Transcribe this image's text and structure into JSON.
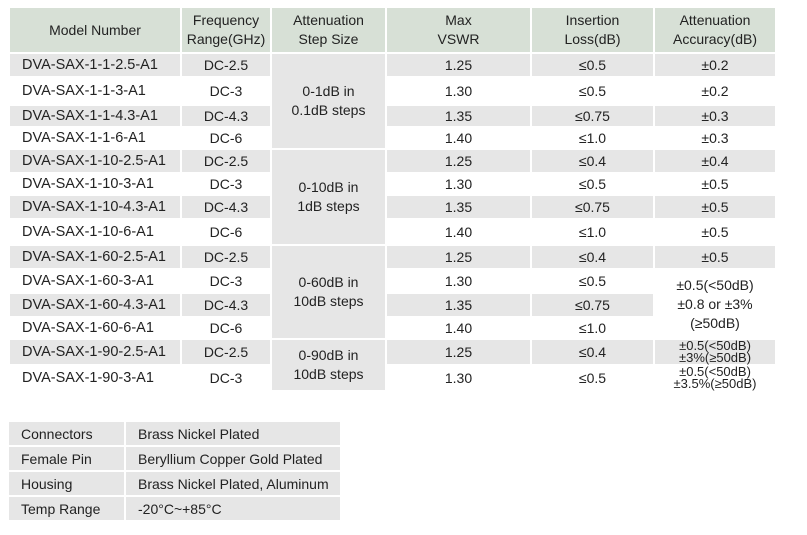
{
  "headers": {
    "model": "Model Number",
    "freq": [
      "Frequency",
      "Range(GHz)"
    ],
    "step": [
      "Attenuation",
      "Step Size"
    ],
    "vswr": [
      "Max",
      "VSWR"
    ],
    "loss": [
      "Insertion",
      "Loss(dB)"
    ],
    "acc": [
      "Attenuation",
      "Accuracy(dB)"
    ]
  },
  "rows": [
    {
      "model": "DVA-SAX-1-1-2.5-A1",
      "freq": "DC-2.5",
      "vswr": "1.25",
      "loss": "≤0.5",
      "acc": "±0.2"
    },
    {
      "model": "DVA-SAX-1-1-3-A1",
      "freq": "DC-3",
      "vswr": "1.30",
      "loss": "≤0.5",
      "acc": "±0.2"
    },
    {
      "model": "DVA-SAX-1-1-4.3-A1",
      "freq": "DC-4.3",
      "vswr": "1.35",
      "loss": "≤0.75",
      "acc": "±0.3"
    },
    {
      "model": "DVA-SAX-1-1-6-A1",
      "freq": "DC-6",
      "vswr": "1.40",
      "loss": "≤1.0",
      "acc": "±0.3"
    },
    {
      "model": "DVA-SAX-1-10-2.5-A1",
      "freq": "DC-2.5",
      "vswr": "1.25",
      "loss": "≤0.4",
      "acc": "±0.4"
    },
    {
      "model": "DVA-SAX-1-10-3-A1",
      "freq": "DC-3",
      "vswr": "1.30",
      "loss": "≤0.5",
      "acc": "±0.5"
    },
    {
      "model": "DVA-SAX-1-10-4.3-A1",
      "freq": "DC-4.3",
      "vswr": "1.35",
      "loss": "≤0.75",
      "acc": "±0.5"
    },
    {
      "model": "DVA-SAX-1-10-6-A1",
      "freq": "DC-6",
      "vswr": "1.40",
      "loss": "≤1.0",
      "acc": "±0.5"
    },
    {
      "model": "DVA-SAX-1-60-2.5-A1",
      "freq": "DC-2.5",
      "vswr": "1.25",
      "loss": "≤0.4",
      "acc": "±0.5"
    },
    {
      "model": "DVA-SAX-1-60-3-A1",
      "freq": "DC-3",
      "vswr": "1.30",
      "loss": "≤0.5"
    },
    {
      "model": "DVA-SAX-1-60-4.3-A1",
      "freq": "DC-4.3",
      "vswr": "1.35",
      "loss": "≤0.75"
    },
    {
      "model": "DVA-SAX-1-60-6-A1",
      "freq": "DC-6",
      "vswr": "1.40",
      "loss": "≤1.0"
    },
    {
      "model": "DVA-SAX-1-90-2.5-A1",
      "freq": "DC-2.5",
      "vswr": "1.25",
      "loss": "≤0.4",
      "acc": [
        "±0.5(<50dB)",
        "±3%(≥50dB)"
      ]
    },
    {
      "model": "DVA-SAX-1-90-3-A1",
      "freq": "DC-3",
      "vswr": "1.30",
      "loss": "≤0.5",
      "acc": [
        "±0.5(<50dB)",
        "±3.5%(≥50dB)"
      ]
    }
  ],
  "step_groups": [
    {
      "rows": 4,
      "text": [
        "0-1dB in",
        "0.1dB steps"
      ]
    },
    {
      "rows": 4,
      "text": [
        "0-10dB in",
        "1dB steps"
      ]
    },
    {
      "rows": 4,
      "text": [
        "0-60dB in",
        "10dB steps"
      ]
    },
    {
      "rows": 2,
      "text": [
        "0-90dB in",
        "10dB steps"
      ]
    }
  ],
  "acc_group_60": [
    "±0.5(<50dB)",
    "±0.8 or ±3%",
    "(≥50dB)"
  ],
  "materials": [
    {
      "label": "Connectors",
      "value": "Brass Nickel Plated"
    },
    {
      "label": "Female Pin",
      "value": "Beryllium Copper Gold Plated"
    },
    {
      "label": "Housing",
      "value": "Brass Nickel Plated, Aluminum"
    },
    {
      "label": "Temp Range",
      "value": "-20°C~+85°C"
    }
  ],
  "colors": {
    "header": "#d7e0d6",
    "row_alt": "#e6e6e6"
  }
}
